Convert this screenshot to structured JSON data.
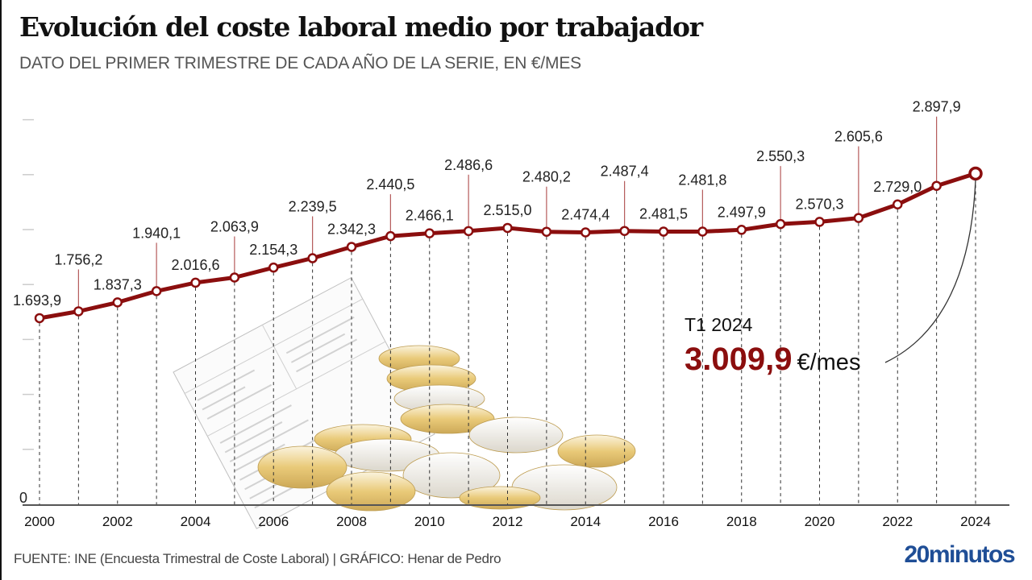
{
  "header": {
    "title": "Evolución del coste laboral medio por trabajador",
    "subtitle": "DATO DEL PRIMER TRIMESTRE DE CADA AÑO DE LA SERIE, EN €/MES"
  },
  "annotation": {
    "period": "T1 2024",
    "value": "3.009,9",
    "unit": "€/mes"
  },
  "footer": {
    "source": "FUENTE: INE (Encuesta Trimestral de Coste Laboral)  |  GRÁFICO: Henar de Pedro",
    "logo": "20minutos"
  },
  "colors": {
    "line": "#8b0e0e",
    "leader": "#b55a5a",
    "logo": "#1f4e96"
  },
  "chart_data": {
    "type": "line",
    "title": "Evolución del coste laboral medio por trabajador",
    "subtitle": "DATO DEL PRIMER TRIMESTRE DE CADA AÑO DE LA SERIE, EN €/MES",
    "xlabel": "",
    "ylabel": "€/mes",
    "x": [
      2000,
      2001,
      2002,
      2003,
      2004,
      2005,
      2006,
      2007,
      2008,
      2009,
      2010,
      2011,
      2012,
      2013,
      2014,
      2015,
      2016,
      2017,
      2018,
      2019,
      2020,
      2021,
      2022,
      2023,
      2024
    ],
    "series": [
      {
        "name": "Coste laboral medio por trabajador (T1)",
        "values": [
          1693.9,
          1756.2,
          1837.3,
          1940.1,
          2016.6,
          2063.9,
          2154.3,
          2239.5,
          2342.3,
          2440.5,
          2466.1,
          2486.6,
          2515.0,
          2480.2,
          2474.4,
          2487.4,
          2481.5,
          2481.8,
          2497.9,
          2550.3,
          2570.3,
          2605.6,
          2729.0,
          2897.9,
          3009.9
        ],
        "labels": [
          "1.693,9",
          "1.756,2",
          "1.837,3",
          "1.940,1",
          "2.016,6",
          "2.063,9",
          "2.154,3",
          "2.239,5",
          "2.342,3",
          "2.440,5",
          "2.466,1",
          "2.486,6",
          "2.515,0",
          "2.480,2",
          "2.474,4",
          "2.487,4",
          "2.481,5",
          "2.481,8",
          "2.497,9",
          "2.550,3",
          "2.570,3",
          "2.605,6",
          "2.729,0",
          "2.897,9",
          ""
        ]
      }
    ],
    "x_tick_labels": [
      "2000",
      "2002",
      "2004",
      "2006",
      "2008",
      "2010",
      "2012",
      "2014",
      "2016",
      "2018",
      "2020",
      "2022",
      "2024"
    ],
    "y_tick_labels": [
      "0"
    ],
    "ylim": [
      0,
      3500
    ],
    "y_ticks": [
      0,
      500,
      1000,
      1500,
      2000,
      2500,
      3000,
      3500
    ],
    "grid": "vertical dashed lines at each year",
    "legend": "none",
    "highlight": {
      "x": 2024,
      "value": 3009.9,
      "label": "T1 2024: 3.009,9 €/mes"
    }
  }
}
